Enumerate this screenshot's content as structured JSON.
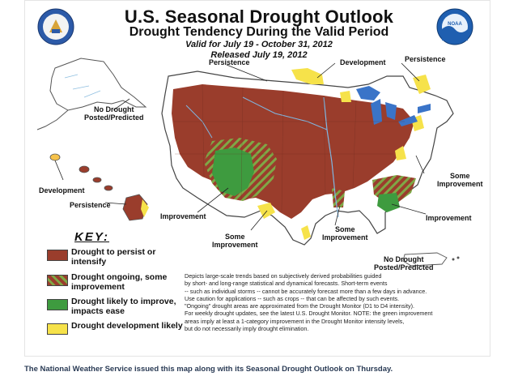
{
  "header": {
    "title": "U.S. Seasonal Drought Outlook",
    "subtitle": "Drought Tendency During the Valid Period",
    "valid": "Valid for July 19 - October 31, 2012",
    "released": "Released July 19, 2012"
  },
  "logos": {
    "right_logo_text": "NOAA"
  },
  "map_labels": {
    "persistence_west": "Persistence",
    "development_north": "Development",
    "persistence_ne": "Persistence",
    "no_drought_alaska": "No Drought\nPosted/Predicted",
    "development_hawaii": "Development",
    "persistence_hawaii": "Persistence",
    "improvement_sw": "Improvement",
    "some_improvement_tx": "Some\nImprovement",
    "some_improvement_gulf": "Some\nImprovement",
    "some_improvement_east": "Some\nImprovement",
    "improvement_se": "Improvement",
    "no_drought_pr": "No Drought\nPosted/Predicted"
  },
  "key": {
    "title": "KEY:",
    "items": [
      {
        "label": "Drought to persist or intensify",
        "color": "#9a3d2c"
      },
      {
        "label": "Drought ongoing, some improvement",
        "color": "#9a3d2c",
        "hatch": "#6fa83c"
      },
      {
        "label": "Drought likely to improve, impacts ease",
        "color": "#3e9b3f"
      },
      {
        "label": "Drought development likely",
        "color": "#f6e24a"
      }
    ]
  },
  "description": [
    "Depicts large-scale trends based on subjectively derived probabilities guided",
    "by short- and long-range statistical and dynamical forecasts. Short-term events",
    "-- such as individual storms -- cannot be accurately forecast more than a few days in advance.",
    "Use caution for applications -- such as crops -- that can be affected by such events.",
    "\"Ongoing\" drought areas are approximated from the Drought Monitor (D1 to D4 intensity).",
    "For weekly drought updates, see the latest U.S. Drought Monitor. NOTE: the green improvement",
    "areas imply at least a 1-category improvement in the Drought Monitor intensity levels,",
    "but do not necessarily imply drought elimination."
  ],
  "caption": "The National Weather Service issued this map along with its Seasonal Drought Outlook on Thursday."
}
